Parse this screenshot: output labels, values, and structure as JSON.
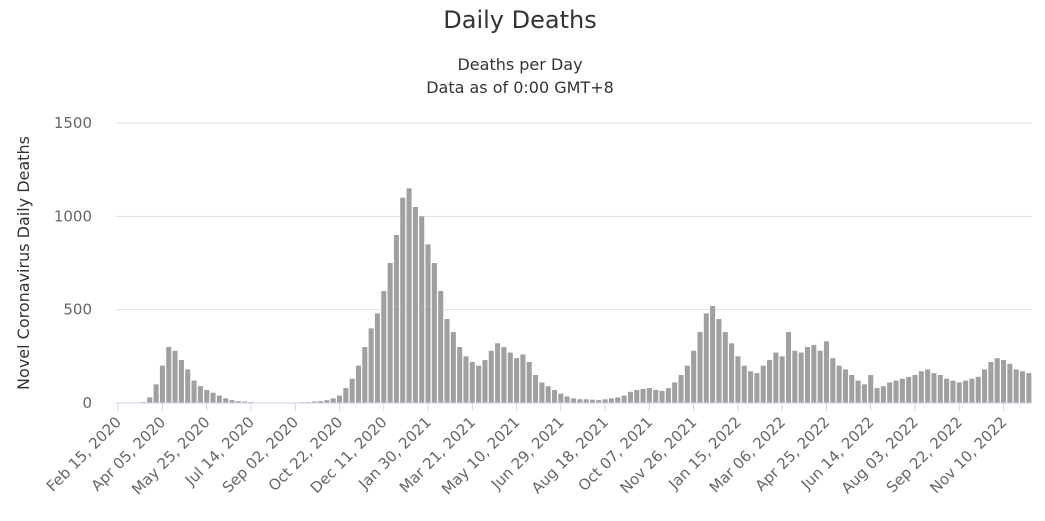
{
  "chart_data": {
    "type": "bar",
    "title": "Daily Deaths",
    "subtitle": [
      "Deaths per Day",
      "Data as of 0:00 GMT+8"
    ],
    "y_label": "Novel Coronavirus Daily Deaths",
    "color": "#a0a0a0",
    "grid": true,
    "ylim": [
      0,
      1500
    ],
    "yticks": [
      0,
      500,
      1000,
      1500
    ],
    "categories": [
      "Feb 15, 2020",
      null,
      null,
      null,
      null,
      null,
      null,
      "Apr 05, 2020",
      null,
      null,
      null,
      null,
      null,
      null,
      "May 25, 2020",
      null,
      null,
      null,
      null,
      null,
      null,
      "Jul 14, 2020",
      null,
      null,
      null,
      null,
      null,
      null,
      "Sep 02, 2020",
      null,
      null,
      null,
      null,
      null,
      null,
      "Oct 22, 2020",
      null,
      null,
      null,
      null,
      null,
      null,
      "Dec 11, 2020",
      null,
      null,
      null,
      null,
      null,
      null,
      "Jan 30, 2021",
      null,
      null,
      null,
      null,
      null,
      null,
      "Mar 21, 2021",
      null,
      null,
      null,
      null,
      null,
      null,
      "May 10, 2021",
      null,
      null,
      null,
      null,
      null,
      null,
      "Jun 29, 2021",
      null,
      null,
      null,
      null,
      null,
      null,
      "Aug 18, 2021",
      null,
      null,
      null,
      null,
      null,
      null,
      "Oct 07, 2021",
      null,
      null,
      null,
      null,
      null,
      null,
      "Nov 26, 2021",
      null,
      null,
      null,
      null,
      null,
      null,
      "Jan 15, 2022",
      null,
      null,
      null,
      null,
      null,
      null,
      "Mar 06, 2022",
      null,
      null,
      null,
      null,
      null,
      null,
      "Apr 25, 2022",
      null,
      null,
      null,
      null,
      null,
      null,
      "Jun 14, 2022",
      null,
      null,
      null,
      null,
      null,
      null,
      "Aug 03, 2022",
      null,
      null,
      null,
      null,
      null,
      null,
      "Sep 22, 2022",
      null,
      null,
      null,
      null,
      null,
      null,
      "Nov 10, 2022",
      null,
      null,
      null,
      null
    ],
    "values": [
      0,
      0,
      0,
      0,
      5,
      30,
      100,
      200,
      300,
      280,
      230,
      180,
      120,
      90,
      70,
      55,
      40,
      25,
      15,
      10,
      8,
      5,
      3,
      3,
      2,
      3,
      3,
      2,
      3,
      4,
      5,
      8,
      10,
      15,
      25,
      40,
      80,
      130,
      200,
      300,
      400,
      480,
      600,
      750,
      900,
      1100,
      1150,
      1050,
      1000,
      850,
      750,
      600,
      450,
      380,
      300,
      250,
      220,
      200,
      230,
      280,
      320,
      300,
      270,
      240,
      260,
      220,
      150,
      110,
      90,
      70,
      50,
      35,
      25,
      20,
      20,
      18,
      15,
      20,
      25,
      30,
      40,
      60,
      70,
      75,
      80,
      70,
      65,
      80,
      110,
      150,
      200,
      280,
      380,
      480,
      520,
      450,
      380,
      320,
      250,
      200,
      170,
      160,
      200,
      230,
      270,
      250,
      380,
      280,
      270,
      300,
      310,
      280,
      330,
      240,
      200,
      180,
      150,
      120,
      100,
      150,
      80,
      90,
      110,
      120,
      130,
      140,
      150,
      170,
      180,
      160,
      150,
      130,
      120,
      110,
      120,
      130,
      140,
      180,
      220,
      240,
      230,
      210,
      180,
      170,
      160
    ]
  }
}
